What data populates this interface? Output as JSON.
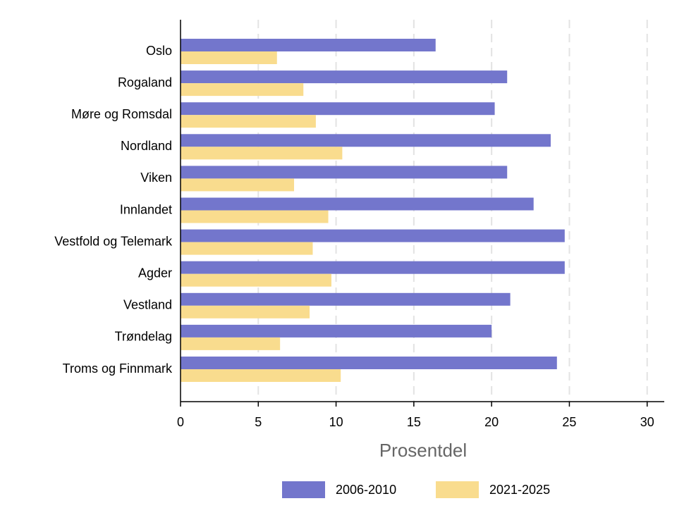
{
  "chart_data": {
    "type": "barh",
    "categories": [
      "Oslo",
      "Rogaland",
      "Møre og Romsdal",
      "Nordland",
      "Viken",
      "Innlandet",
      "Vestfold og Telemark",
      "Agder",
      "Vestland",
      "Trøndelag",
      "Troms og Finnmark"
    ],
    "series": [
      {
        "name": "2006-2010",
        "color": "#7376cc",
        "values": [
          16.4,
          21.0,
          20.2,
          23.8,
          21.0,
          22.7,
          24.7,
          24.7,
          21.2,
          20.0,
          24.2
        ]
      },
      {
        "name": "2021-2025",
        "color": "#f9dc8e",
        "values": [
          6.2,
          7.9,
          8.7,
          10.4,
          7.3,
          9.5,
          8.5,
          9.7,
          8.3,
          6.4,
          10.3
        ]
      }
    ],
    "xlabel": "Prosentdel",
    "xlim": [
      0,
      31.1
    ],
    "xticks": [
      0,
      5,
      10,
      15,
      20,
      25,
      30
    ],
    "grid": true,
    "legend": "bottom"
  }
}
